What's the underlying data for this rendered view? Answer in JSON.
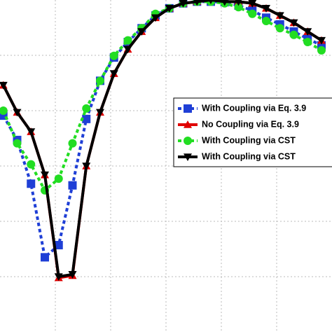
{
  "chart_data": {
    "type": "line",
    "x": [
      0.06,
      0.31,
      0.56,
      0.81,
      1.06,
      1.31,
      1.56,
      1.81,
      2.06,
      2.31,
      2.56,
      2.81,
      3.06,
      3.31,
      3.56,
      3.81,
      4.06,
      4.31,
      4.56,
      4.81,
      5.06,
      5.31,
      5.56,
      5.81
    ],
    "series": [
      {
        "name": "With Coupling via Eq. 3.9",
        "color": "#1f3fd6",
        "marker": "square",
        "dash": true,
        "values": [
          3.91,
          3.47,
          2.68,
          1.35,
          1.57,
          2.65,
          3.85,
          4.54,
          4.96,
          5.24,
          5.49,
          5.72,
          5.85,
          5.94,
          5.97,
          5.97,
          5.96,
          5.9,
          5.81,
          5.68,
          5.56,
          5.43,
          5.3,
          5.18
        ]
      },
      {
        "name": "No Coupling via Eq. 3.9",
        "color": "#e00000",
        "marker": "triangle-up",
        "dash": false,
        "values": [
          4.46,
          3.97,
          3.62,
          2.84,
          0.98,
          1.02,
          3.0,
          3.97,
          4.67,
          5.11,
          5.43,
          5.68,
          5.85,
          5.94,
          5.97,
          6.0,
          5.97,
          5.97,
          5.94,
          5.85,
          5.72,
          5.59,
          5.43,
          5.27
        ]
      },
      {
        "name": "With Coupling via CST",
        "color": "#22dd22",
        "marker": "circle",
        "dash": true,
        "values": [
          4.0,
          3.41,
          3.03,
          2.56,
          2.77,
          3.41,
          4.04,
          4.54,
          4.99,
          5.27,
          5.49,
          5.75,
          5.85,
          5.94,
          5.97,
          5.97,
          5.94,
          5.87,
          5.75,
          5.62,
          5.49,
          5.37,
          5.24,
          5.09
        ]
      },
      {
        "name": "With Coupling via CST",
        "color": "#000000",
        "marker": "triangle-down",
        "dash": false,
        "values": [
          4.46,
          3.97,
          3.62,
          2.84,
          1.0,
          1.04,
          3.0,
          3.97,
          4.67,
          5.11,
          5.43,
          5.68,
          5.85,
          5.94,
          5.97,
          6.0,
          5.97,
          5.97,
          5.94,
          5.85,
          5.72,
          5.59,
          5.43,
          5.27
        ]
      }
    ],
    "xlim": [
      0,
      6
    ],
    "ylim": [
      0,
      6
    ],
    "xticks": [
      1,
      2,
      3,
      4,
      5
    ],
    "yticks": [
      1,
      2,
      3,
      4,
      5
    ],
    "grid": true,
    "legend": "right"
  }
}
